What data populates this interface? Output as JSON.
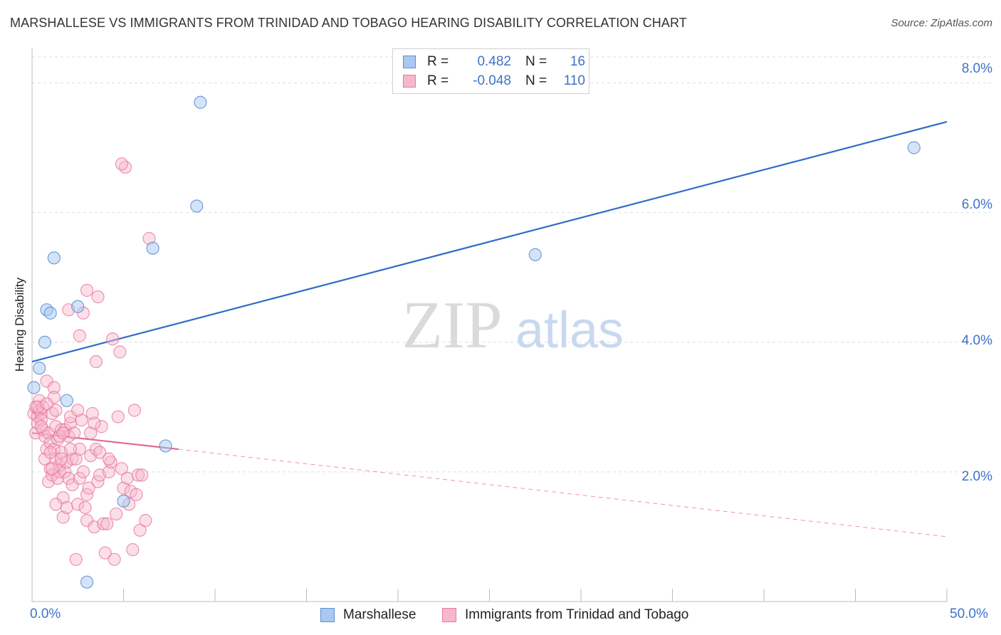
{
  "title": "MARSHALLESE VS IMMIGRANTS FROM TRINIDAD AND TOBAGO HEARING DISABILITY CORRELATION CHART",
  "source": "Source: ZipAtlas.com",
  "watermark": {
    "zip": "ZIP",
    "atlas": "atlas"
  },
  "legend_stats": {
    "series1": {
      "r_label": "R =",
      "r_value": "0.482",
      "n_label": "N =",
      "n_value": "16",
      "color": "#aac8f0"
    },
    "series2": {
      "r_label": "R =",
      "r_value": "-0.048",
      "n_label": "N =",
      "n_value": "110",
      "color": "#f6b8cc"
    }
  },
  "chart_data": {
    "type": "scatter",
    "title": "MARSHALLESE VS IMMIGRANTS FROM TRINIDAD AND TOBAGO HEARING DISABILITY CORRELATION CHART",
    "xlabel": "",
    "ylabel": "Hearing Disability",
    "xlim": [
      0,
      50
    ],
    "ylim": [
      0,
      8.4
    ],
    "x_tick_labels": [
      "0.0%",
      "50.0%"
    ],
    "y_ticks": [
      2,
      4,
      6,
      8
    ],
    "y_tick_labels": [
      "2.0%",
      "4.0%",
      "6.0%",
      "8.0%"
    ],
    "grid": true,
    "legend_position": "bottom",
    "series": [
      {
        "name": "Marshallese",
        "color": "#5b8fd6",
        "fill": "#aac8f0",
        "trend": {
          "x": [
            0,
            50
          ],
          "y": [
            3.7,
            7.4
          ],
          "color": "#2f6cc7"
        },
        "points": [
          [
            0.1,
            3.3
          ],
          [
            0.4,
            3.6
          ],
          [
            0.7,
            4.0
          ],
          [
            0.8,
            4.5
          ],
          [
            1.0,
            4.45
          ],
          [
            1.2,
            5.3
          ],
          [
            1.9,
            3.1
          ],
          [
            2.5,
            4.55
          ],
          [
            3.0,
            0.3
          ],
          [
            5.0,
            1.55
          ],
          [
            6.6,
            5.45
          ],
          [
            7.3,
            2.4
          ],
          [
            9.0,
            6.1
          ],
          [
            9.2,
            7.7
          ],
          [
            27.5,
            5.35
          ],
          [
            48.2,
            7.0
          ]
        ]
      },
      {
        "name": "Immigrants from Trinidad and Tobago",
        "color": "#e87aa0",
        "fill": "#f6b8cc",
        "trend": {
          "x": [
            0,
            8
          ],
          "y": [
            2.6,
            2.35
          ],
          "color": "#e06a92"
        },
        "trend_dashed": {
          "x": [
            8,
            50
          ],
          "y": [
            2.35,
            1.0
          ],
          "color": "#e06a92"
        },
        "points": [
          [
            0.1,
            2.9
          ],
          [
            0.2,
            2.6
          ],
          [
            0.2,
            3.0
          ],
          [
            0.3,
            2.85
          ],
          [
            0.3,
            2.75
          ],
          [
            0.4,
            3.1
          ],
          [
            0.4,
            2.95
          ],
          [
            0.5,
            2.9
          ],
          [
            0.5,
            2.8
          ],
          [
            0.6,
            3.0
          ],
          [
            0.6,
            2.65
          ],
          [
            0.7,
            2.55
          ],
          [
            0.7,
            2.2
          ],
          [
            0.8,
            2.35
          ],
          [
            0.8,
            3.4
          ],
          [
            0.9,
            2.6
          ],
          [
            0.9,
            1.85
          ],
          [
            1.0,
            2.45
          ],
          [
            1.0,
            2.05
          ],
          [
            1.1,
            2.9
          ],
          [
            1.1,
            1.95
          ],
          [
            1.2,
            3.3
          ],
          [
            1.2,
            2.35
          ],
          [
            1.3,
            2.7
          ],
          [
            1.3,
            2.2
          ],
          [
            1.4,
            1.9
          ],
          [
            1.4,
            2.5
          ],
          [
            1.5,
            2.0
          ],
          [
            1.5,
            2.1
          ],
          [
            1.6,
            2.65
          ],
          [
            1.6,
            2.3
          ],
          [
            1.7,
            1.3
          ],
          [
            1.7,
            1.6
          ],
          [
            1.8,
            2.0
          ],
          [
            1.8,
            2.65
          ],
          [
            1.9,
            1.45
          ],
          [
            1.9,
            2.15
          ],
          [
            2.0,
            2.55
          ],
          [
            2.0,
            1.9
          ],
          [
            2.1,
            2.75
          ],
          [
            2.1,
            2.85
          ],
          [
            2.2,
            2.2
          ],
          [
            2.2,
            1.8
          ],
          [
            2.3,
            2.6
          ],
          [
            2.4,
            2.2
          ],
          [
            2.4,
            0.65
          ],
          [
            2.5,
            1.5
          ],
          [
            2.6,
            1.9
          ],
          [
            2.6,
            2.35
          ],
          [
            2.7,
            2.8
          ],
          [
            2.8,
            2.0
          ],
          [
            2.9,
            1.45
          ],
          [
            3.0,
            1.25
          ],
          [
            3.0,
            1.65
          ],
          [
            3.1,
            1.75
          ],
          [
            3.2,
            2.25
          ],
          [
            3.3,
            2.9
          ],
          [
            3.4,
            1.15
          ],
          [
            3.5,
            2.35
          ],
          [
            3.5,
            3.7
          ],
          [
            3.6,
            1.85
          ],
          [
            3.7,
            1.95
          ],
          [
            3.8,
            2.7
          ],
          [
            3.9,
            1.2
          ],
          [
            4.0,
            0.75
          ],
          [
            4.1,
            1.2
          ],
          [
            4.2,
            2.0
          ],
          [
            4.3,
            2.15
          ],
          [
            4.4,
            4.05
          ],
          [
            4.5,
            0.65
          ],
          [
            4.6,
            1.35
          ],
          [
            4.7,
            2.85
          ],
          [
            4.8,
            3.85
          ],
          [
            4.9,
            2.05
          ],
          [
            5.0,
            1.75
          ],
          [
            5.1,
            6.7
          ],
          [
            5.2,
            1.9
          ],
          [
            5.3,
            1.5
          ],
          [
            5.4,
            1.7
          ],
          [
            5.5,
            0.8
          ],
          [
            5.6,
            2.95
          ],
          [
            5.7,
            1.65
          ],
          [
            5.8,
            1.95
          ],
          [
            5.9,
            1.1
          ],
          [
            6.0,
            1.95
          ],
          [
            6.2,
            1.25
          ],
          [
            6.4,
            5.6
          ],
          [
            1.2,
            3.15
          ],
          [
            1.3,
            2.95
          ],
          [
            1.5,
            2.55
          ],
          [
            1.7,
            2.6
          ],
          [
            2.0,
            4.5
          ],
          [
            2.5,
            2.95
          ],
          [
            2.6,
            4.1
          ],
          [
            2.8,
            4.45
          ],
          [
            3.0,
            4.8
          ],
          [
            3.2,
            2.6
          ],
          [
            3.4,
            2.75
          ],
          [
            3.6,
            4.7
          ],
          [
            3.7,
            2.3
          ],
          [
            4.2,
            2.2
          ],
          [
            4.9,
            6.75
          ],
          [
            0.3,
            3.0
          ],
          [
            0.5,
            2.7
          ],
          [
            0.8,
            3.05
          ],
          [
            1.0,
            2.3
          ],
          [
            1.1,
            2.05
          ],
          [
            1.3,
            1.5
          ],
          [
            1.6,
            2.2
          ],
          [
            2.1,
            2.35
          ]
        ]
      }
    ]
  }
}
